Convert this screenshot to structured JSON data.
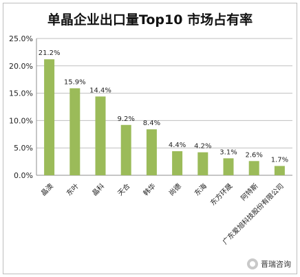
{
  "chart_data": {
    "type": "bar",
    "title": "单晶企业出口量Top10 市场占有率",
    "categories": [
      "晶澳",
      "东叶",
      "晶科",
      "天合",
      "韩华",
      "尚德",
      "东海",
      "东方环晟",
      "阿特斯",
      "广东爱旭科技股份有限公司"
    ],
    "values": [
      21.2,
      15.9,
      14.4,
      9.2,
      8.4,
      4.4,
      4.2,
      3.1,
      2.6,
      1.7
    ],
    "value_labels": [
      "21.2%",
      "15.9%",
      "14.4%",
      "9.2%",
      "8.4%",
      "4.4%",
      "4.2%",
      "3.1%",
      "2.6%",
      "1.7%"
    ],
    "ylim": [
      0,
      25
    ],
    "yticks": [
      0,
      5,
      10,
      15,
      20,
      25
    ],
    "ytick_labels": [
      "0.0%",
      "5.0%",
      "10.0%",
      "15.0%",
      "20.0%",
      "25.0%"
    ],
    "xlabel": "",
    "ylabel": "",
    "grid": true,
    "bar_color": "#9bbb59",
    "grid_color": "#bfbfbf"
  },
  "watermark": {
    "text": "晋瑞咨询",
    "icon": "wechat-icon"
  }
}
